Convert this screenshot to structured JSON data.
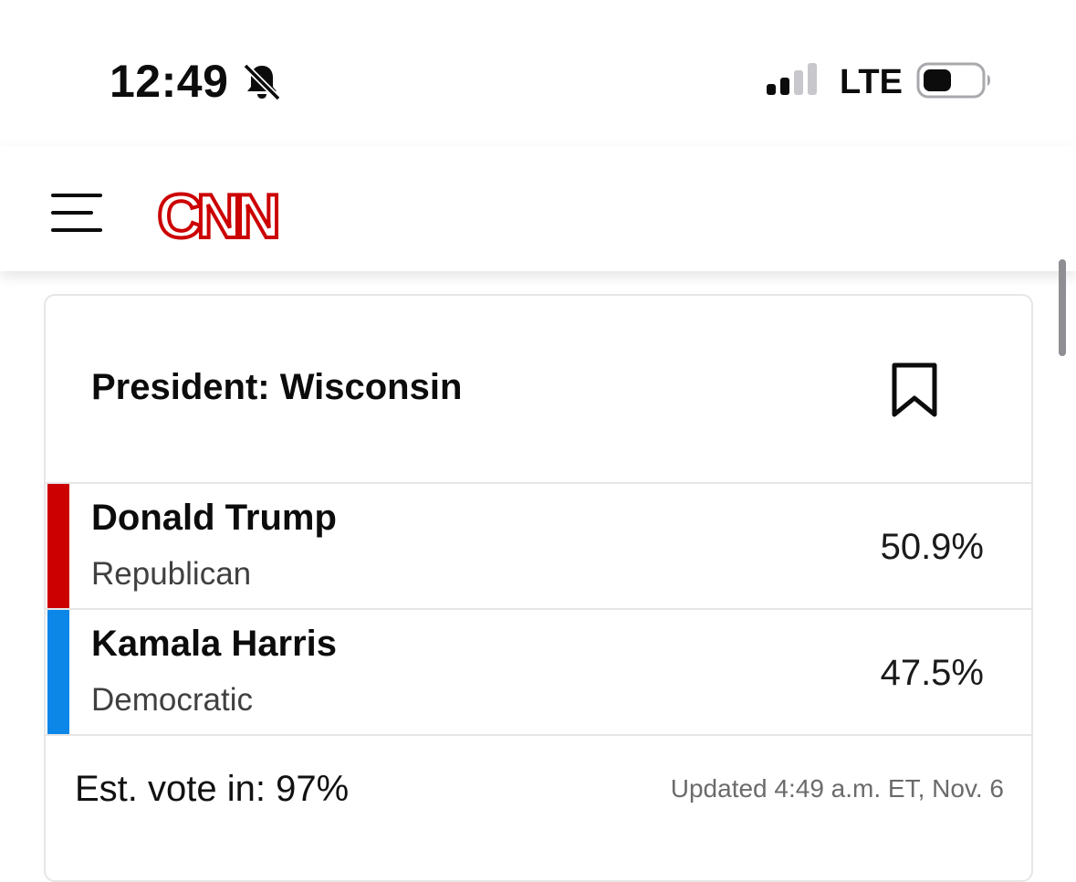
{
  "status_bar": {
    "time": "12:49",
    "network": "LTE",
    "silent_icon": "bell-slash-icon",
    "signal_icon": "cellular-signal-icon",
    "battery_icon": "battery-icon",
    "signal_bars_active": 2,
    "signal_bars_total": 4
  },
  "header": {
    "menu_icon": "hamburger-menu-icon",
    "logo_text": "CNN",
    "logo_color": "#cc0000"
  },
  "result_card": {
    "title": "President: Wisconsin",
    "bookmark_icon": "bookmark-icon",
    "candidates": [
      {
        "name": "Donald Trump",
        "party": "Republican",
        "percent": "50.9%",
        "color": "#cc0000"
      },
      {
        "name": "Kamala Harris",
        "party": "Democratic",
        "percent": "47.5%",
        "color": "#0c87e8"
      }
    ],
    "est_vote": "Est. vote in: 97%",
    "updated": "Updated 4:49 a.m. ET, Nov. 6"
  }
}
